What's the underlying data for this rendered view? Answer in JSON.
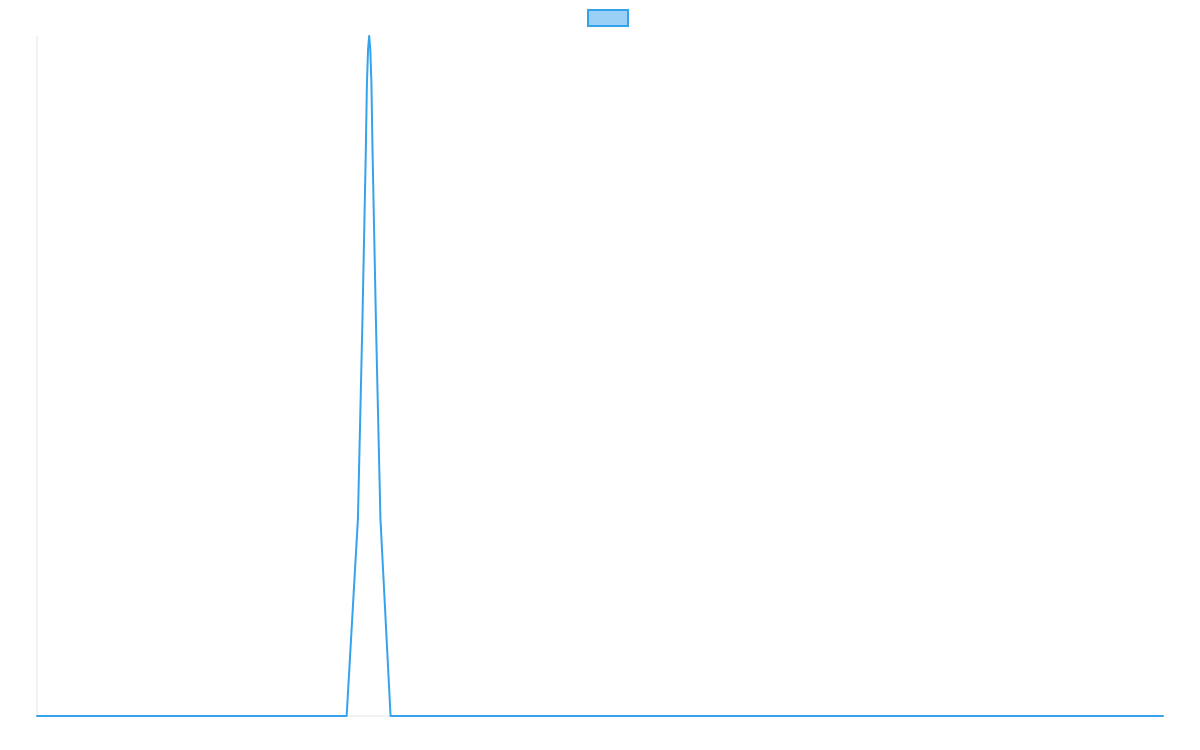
{
  "chart_data": {
    "type": "line",
    "title": "",
    "xlabel": "",
    "ylabel": "",
    "legend": {
      "placement": "top-center",
      "entries": [
        {
          "name": "",
          "color": "#36A2EB"
        }
      ]
    },
    "grid": false,
    "xlim": [
      0,
      100
    ],
    "ylim": [
      0,
      1
    ],
    "series": [
      {
        "color": "#36A2EB",
        "fill": "#9AD0F5",
        "points": [
          [
            0,
            0
          ],
          [
            27.5,
            0
          ],
          [
            28.5,
            0.29
          ],
          [
            28.9,
            0.58
          ],
          [
            29.2,
            0.83
          ],
          [
            29.3,
            0.93
          ],
          [
            29.4,
            0.98
          ],
          [
            29.5,
            1.0
          ],
          [
            29.6,
            0.98
          ],
          [
            29.7,
            0.93
          ],
          [
            29.8,
            0.83
          ],
          [
            30.1,
            0.58
          ],
          [
            30.5,
            0.29
          ],
          [
            31.4,
            0
          ],
          [
            100,
            0
          ]
        ]
      }
    ]
  }
}
